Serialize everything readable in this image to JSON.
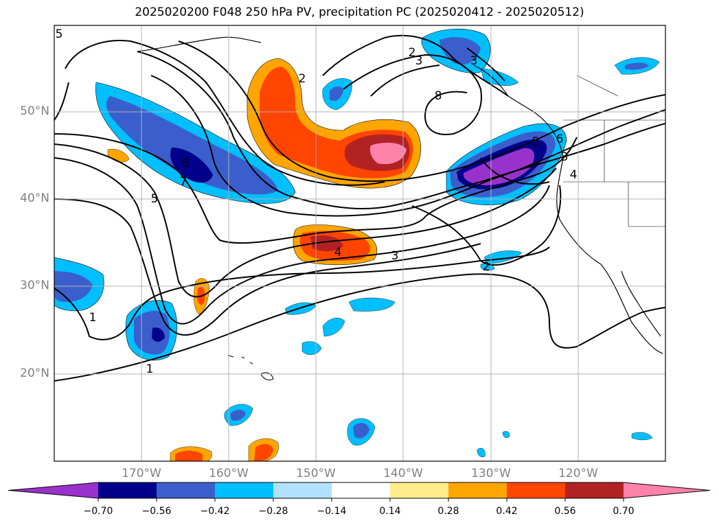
{
  "title": "2025020200 F048 250 hPa PV, precipitation PC (2025020412 - 2025020512)",
  "lat_labels": [
    "50°N",
    "40°N",
    "30°N",
    "20°N"
  ],
  "lon_labels": [
    "170°W",
    "160°W",
    "150°W",
    "140°W",
    "130°W",
    "120°W"
  ],
  "colorbar": {
    "colors": [
      "#9932CC",
      "#00008B",
      "#3A5FCD",
      "#00BFFF",
      "#B0E2FF",
      "#FFFFFF",
      "#FFEC8B",
      "#FFA500",
      "#FF4500",
      "#B22222",
      "#FF82AB"
    ],
    "ticks": [
      "−0.70",
      "−0.56",
      "−0.42",
      "−0.28",
      "−0.14",
      "0.14",
      "0.28",
      "0.42",
      "0.56",
      "0.70"
    ]
  },
  "contour_labels": [
    "1",
    "1",
    "2",
    "2",
    "2",
    "3",
    "3",
    "3",
    "3",
    "4",
    "4",
    "5",
    "5",
    "5",
    "6",
    "6",
    "7",
    "8"
  ]
}
